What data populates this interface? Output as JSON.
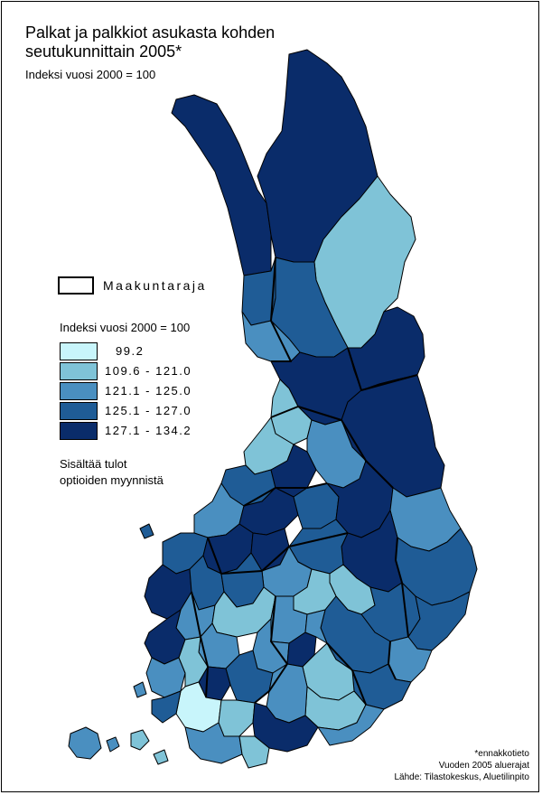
{
  "title_line1": "Palkat ja palkkiot asukasta kohden",
  "title_line2": "seutukunnittain 2005*",
  "subtitle": "Indeksi vuosi 2000 = 100",
  "legend": {
    "boundary_label": "Maakuntaraja",
    "title": "Indeksi vuosi 2000 = 100",
    "classes": [
      {
        "label": "99.2",
        "color": "#c8f5fb"
      },
      {
        "label": "109.6 - 121.0",
        "color": "#7fc3d7"
      },
      {
        "label": "121.1 - 125.0",
        "color": "#4a8fc0"
      },
      {
        "label": "125.1 - 127.0",
        "color": "#1f5c96"
      },
      {
        "label": "127.1 - 134.2",
        "color": "#0a2c6a"
      }
    ]
  },
  "note_line1": "Sisältää tulot",
  "note_line2": "optioiden myynnistä",
  "footer": {
    "line1": "*ennakkotieto",
    "line2": "Vuoden 2005 aluerajat",
    "line3": "Lähde: Tilastokeskus, Aluetilinpito"
  }
}
